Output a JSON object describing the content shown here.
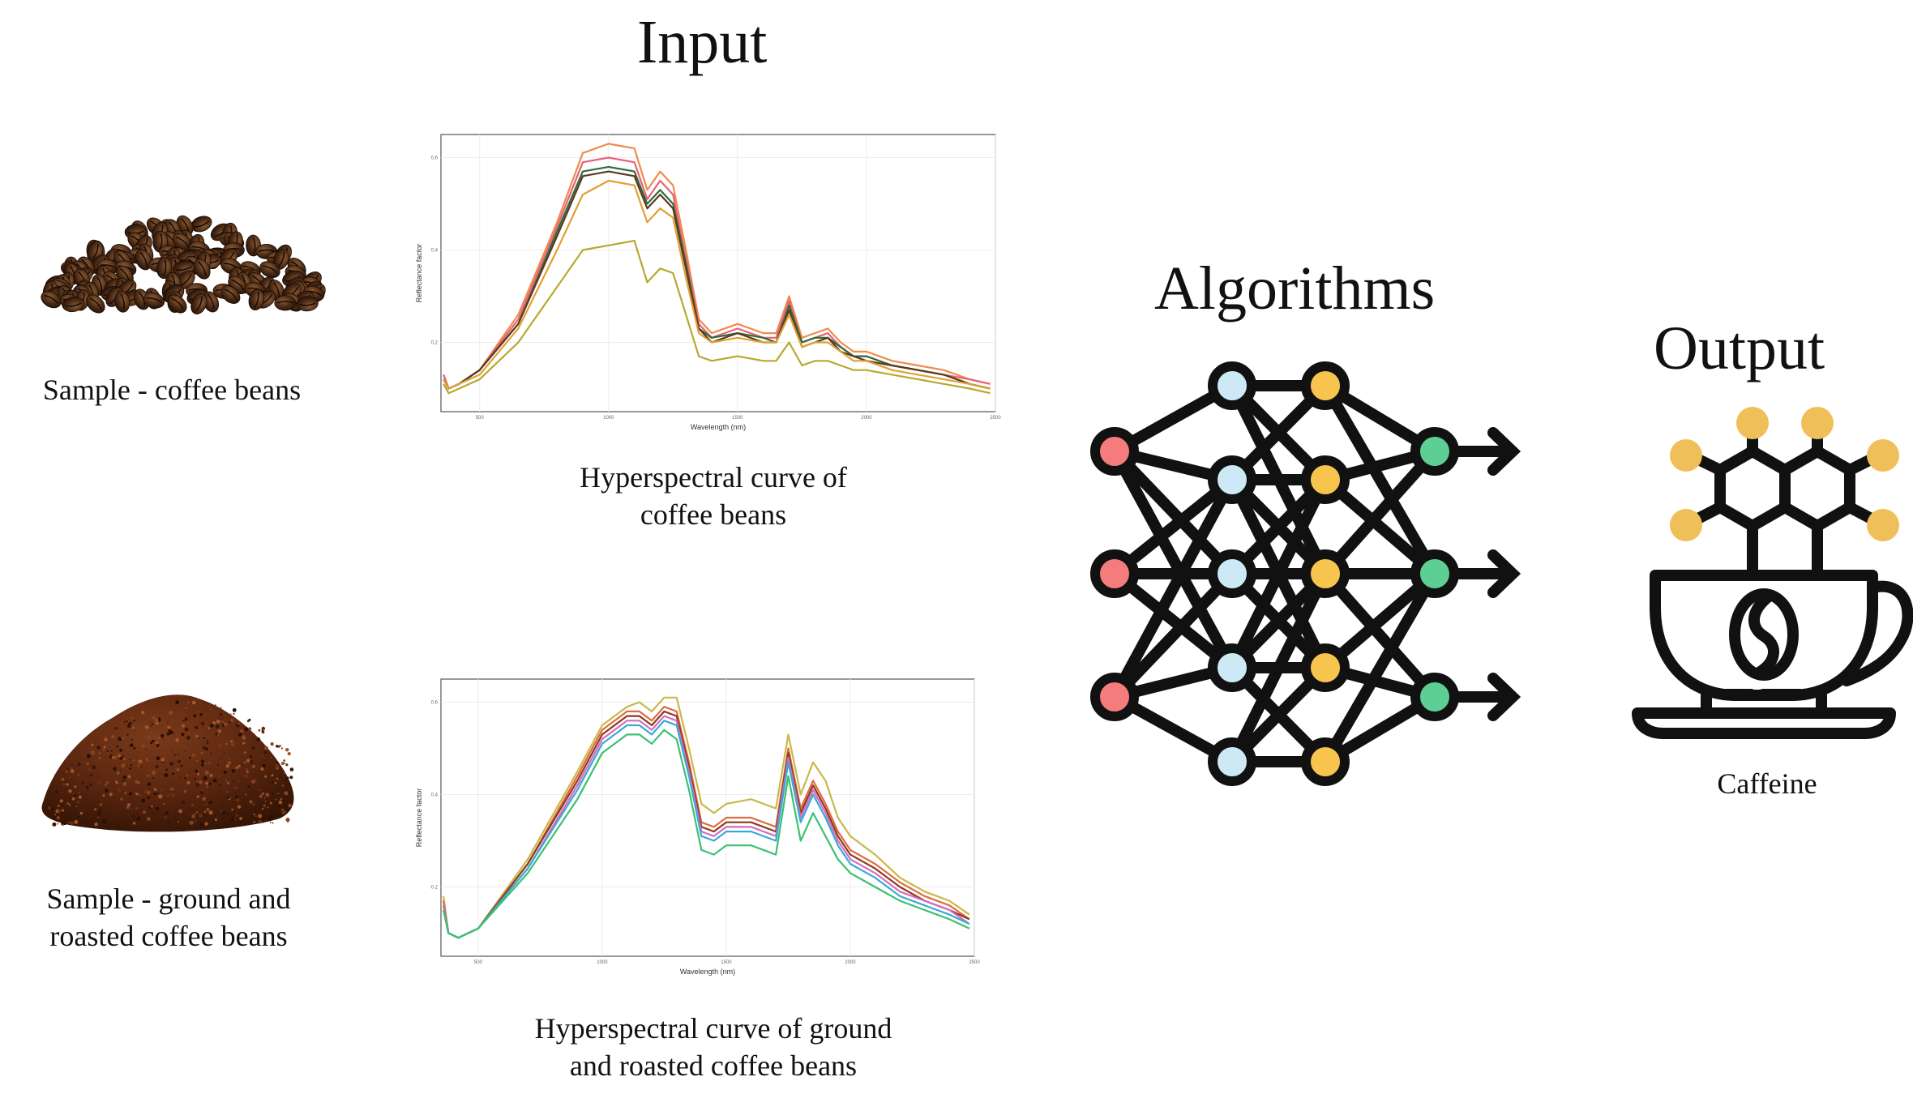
{
  "headings": {
    "input": "Input",
    "algorithms": "Algorithms",
    "output": "Output"
  },
  "samples": {
    "beans": "Sample - coffee beans",
    "ground": [
      "Sample - ground and",
      "roasted coffee beans"
    ]
  },
  "curves": {
    "beans": [
      "Hyperspectral curve of",
      "coffee beans"
    ],
    "ground": [
      "Hyperspectral curve of ground",
      "and roasted coffee beans"
    ]
  },
  "output_label": "Caffeine",
  "colors": {
    "input_node": "#f47c7c",
    "hidden_node_1": "#cde9f5",
    "hidden_node_2": "#f7c44e",
    "output_node": "#5ecf94",
    "molecule_node": "#efbf5a",
    "ink": "#111111"
  },
  "chart_data": [
    {
      "type": "line",
      "xlabel": "Wavelength (nm)",
      "ylabel": "Reflectance factor",
      "x_ticks": [
        "500",
        "1000",
        "1500",
        "2000",
        "2500"
      ],
      "y_ticks": [
        "0.2",
        "0.4",
        "0.6"
      ],
      "xlim": [
        350,
        2500
      ],
      "ylim": [
        0.05,
        0.65
      ],
      "x": [
        360,
        380,
        420,
        500,
        650,
        800,
        900,
        1000,
        1100,
        1150,
        1200,
        1250,
        1300,
        1350,
        1400,
        1500,
        1600,
        1650,
        1700,
        1750,
        1800,
        1850,
        1900,
        1950,
        2000,
        2100,
        2200,
        2300,
        2400,
        2480
      ],
      "series": [
        {
          "color": "#f08a4b",
          "values": [
            0.13,
            0.1,
            0.11,
            0.14,
            0.26,
            0.46,
            0.61,
            0.63,
            0.62,
            0.53,
            0.57,
            0.54,
            0.4,
            0.25,
            0.22,
            0.24,
            0.22,
            0.22,
            0.3,
            0.21,
            0.22,
            0.23,
            0.2,
            0.18,
            0.18,
            0.16,
            0.15,
            0.14,
            0.12,
            0.11
          ]
        },
        {
          "color": "#e8607a",
          "values": [
            0.13,
            0.1,
            0.11,
            0.14,
            0.25,
            0.45,
            0.59,
            0.6,
            0.59,
            0.51,
            0.55,
            0.52,
            0.38,
            0.24,
            0.21,
            0.23,
            0.21,
            0.21,
            0.29,
            0.2,
            0.21,
            0.22,
            0.19,
            0.17,
            0.17,
            0.15,
            0.14,
            0.13,
            0.12,
            0.11
          ]
        },
        {
          "color": "#2f6b3a",
          "values": [
            0.12,
            0.1,
            0.11,
            0.14,
            0.24,
            0.44,
            0.57,
            0.58,
            0.57,
            0.5,
            0.53,
            0.5,
            0.37,
            0.23,
            0.21,
            0.22,
            0.21,
            0.2,
            0.28,
            0.2,
            0.21,
            0.21,
            0.19,
            0.17,
            0.17,
            0.15,
            0.14,
            0.13,
            0.11,
            0.1
          ]
        },
        {
          "color": "#5a3a20",
          "values": [
            0.12,
            0.1,
            0.11,
            0.14,
            0.24,
            0.43,
            0.56,
            0.57,
            0.56,
            0.49,
            0.52,
            0.49,
            0.36,
            0.23,
            0.2,
            0.22,
            0.2,
            0.2,
            0.27,
            0.19,
            0.2,
            0.21,
            0.18,
            0.17,
            0.16,
            0.15,
            0.14,
            0.13,
            0.11,
            0.1
          ]
        },
        {
          "color": "#e0a030",
          "values": [
            0.12,
            0.1,
            0.11,
            0.13,
            0.23,
            0.4,
            0.52,
            0.55,
            0.54,
            0.46,
            0.49,
            0.47,
            0.34,
            0.22,
            0.2,
            0.21,
            0.2,
            0.2,
            0.26,
            0.19,
            0.2,
            0.2,
            0.18,
            0.16,
            0.16,
            0.14,
            0.13,
            0.12,
            0.11,
            0.1
          ]
        },
        {
          "color": "#b8a830",
          "values": [
            0.11,
            0.09,
            0.1,
            0.12,
            0.2,
            0.32,
            0.4,
            0.41,
            0.42,
            0.33,
            0.36,
            0.35,
            0.26,
            0.17,
            0.16,
            0.17,
            0.16,
            0.16,
            0.2,
            0.15,
            0.16,
            0.16,
            0.15,
            0.14,
            0.14,
            0.13,
            0.12,
            0.11,
            0.1,
            0.09
          ]
        }
      ]
    },
    {
      "type": "line",
      "xlabel": "Wavelength (nm)",
      "ylabel": "Reflectance factor",
      "x_ticks": [
        "500",
        "1000",
        "1500",
        "2000",
        "2500"
      ],
      "y_ticks": [
        "0.2",
        "0.4",
        "0.6"
      ],
      "xlim": [
        350,
        2500
      ],
      "ylim": [
        0.05,
        0.65
      ],
      "x": [
        360,
        380,
        420,
        500,
        700,
        900,
        1000,
        1100,
        1150,
        1200,
        1250,
        1300,
        1350,
        1400,
        1450,
        1500,
        1600,
        1700,
        1750,
        1800,
        1850,
        1900,
        1950,
        2000,
        2100,
        2200,
        2300,
        2400,
        2480
      ],
      "series": [
        {
          "color": "#c9b84a",
          "values": [
            0.18,
            0.1,
            0.09,
            0.11,
            0.26,
            0.45,
            0.55,
            0.59,
            0.6,
            0.58,
            0.61,
            0.61,
            0.5,
            0.38,
            0.36,
            0.38,
            0.39,
            0.37,
            0.53,
            0.4,
            0.47,
            0.43,
            0.35,
            0.31,
            0.27,
            0.22,
            0.19,
            0.17,
            0.14
          ]
        },
        {
          "color": "#e06a40",
          "values": [
            0.17,
            0.1,
            0.09,
            0.11,
            0.25,
            0.44,
            0.54,
            0.58,
            0.58,
            0.56,
            0.59,
            0.58,
            0.47,
            0.34,
            0.33,
            0.35,
            0.35,
            0.33,
            0.5,
            0.37,
            0.43,
            0.38,
            0.32,
            0.28,
            0.25,
            0.21,
            0.18,
            0.16,
            0.13
          ]
        },
        {
          "color": "#8b3a1a",
          "values": [
            0.16,
            0.1,
            0.09,
            0.11,
            0.25,
            0.43,
            0.53,
            0.57,
            0.57,
            0.55,
            0.58,
            0.57,
            0.46,
            0.33,
            0.32,
            0.34,
            0.34,
            0.32,
            0.49,
            0.36,
            0.42,
            0.37,
            0.31,
            0.27,
            0.24,
            0.2,
            0.17,
            0.15,
            0.13
          ]
        },
        {
          "color": "#d46cc0",
          "values": [
            0.16,
            0.1,
            0.09,
            0.11,
            0.24,
            0.42,
            0.52,
            0.56,
            0.56,
            0.54,
            0.57,
            0.56,
            0.45,
            0.32,
            0.31,
            0.33,
            0.33,
            0.31,
            0.48,
            0.35,
            0.41,
            0.36,
            0.3,
            0.26,
            0.23,
            0.19,
            0.17,
            0.15,
            0.12
          ]
        },
        {
          "color": "#3aa8d8",
          "values": [
            0.15,
            0.1,
            0.09,
            0.11,
            0.24,
            0.41,
            0.51,
            0.55,
            0.55,
            0.53,
            0.56,
            0.55,
            0.44,
            0.31,
            0.3,
            0.32,
            0.32,
            0.3,
            0.47,
            0.34,
            0.4,
            0.35,
            0.29,
            0.25,
            0.22,
            0.18,
            0.16,
            0.14,
            0.12
          ]
        },
        {
          "color": "#3cc070",
          "values": [
            0.15,
            0.1,
            0.09,
            0.11,
            0.23,
            0.39,
            0.49,
            0.53,
            0.53,
            0.51,
            0.54,
            0.52,
            0.41,
            0.28,
            0.27,
            0.29,
            0.29,
            0.27,
            0.44,
            0.3,
            0.36,
            0.31,
            0.26,
            0.23,
            0.2,
            0.17,
            0.15,
            0.13,
            0.11
          ]
        }
      ]
    }
  ]
}
